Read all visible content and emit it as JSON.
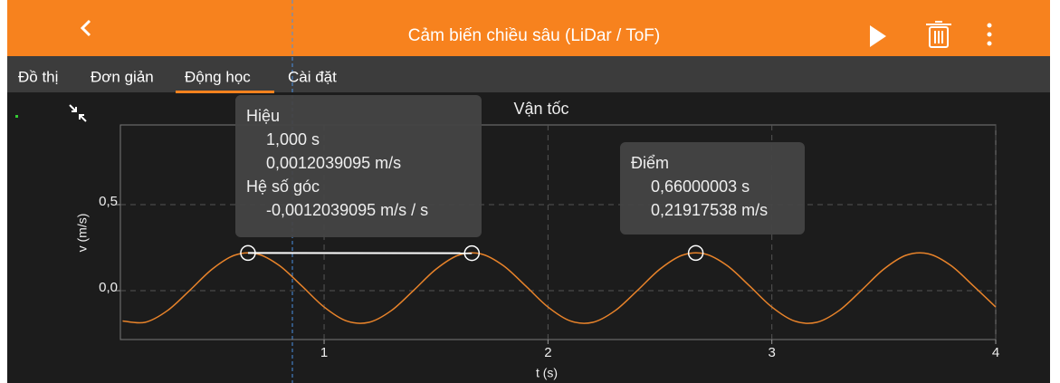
{
  "app_bar": {
    "title": "Cảm biến chiều sâu (LiDar / ToF)"
  },
  "tabs": [
    "Đồ thị",
    "Đơn giản",
    "Động học",
    "Cài đặt"
  ],
  "popups": [
    {
      "lines": [
        "Hiệu",
        "1,000 s",
        "0,0012039095 m/s",
        "Hệ số góc",
        "-0,0012039095 m/s / s"
      ]
    },
    {
      "lines": [
        "Điểm",
        "0,66000003 s",
        "0,21917538 m/s"
      ]
    }
  ],
  "chart_data": {
    "type": "line",
    "title": "Vận tốc",
    "x_label": "t (s)",
    "y_label": "v (m/s)",
    "xlim": [
      0.09,
      4.0
    ],
    "ylim": [
      -0.284,
      0.963
    ],
    "xticks": [
      1,
      2,
      3,
      4
    ],
    "yticks": [
      {
        "value": 0.5,
        "label": "0,5"
      },
      {
        "value": 0,
        "label": "0,0"
      }
    ],
    "grid": true,
    "series": [
      {
        "color": "#e8832a",
        "x": [
          0.1,
          0.2,
          0.3,
          0.4,
          0.5,
          0.6,
          0.7,
          0.8,
          0.9,
          1.0,
          1.1,
          1.2,
          1.3,
          1.4,
          1.5,
          1.6,
          1.7,
          1.8,
          1.9,
          2.0,
          2.1,
          2.2,
          2.3,
          2.4,
          2.5,
          2.6,
          2.7,
          2.8,
          2.9,
          3.0,
          3.1,
          3.2,
          3.3,
          3.4,
          3.5,
          3.6,
          3.7,
          3.8,
          3.9,
          4.0
        ],
        "values": [
          -0.176,
          -0.184,
          -0.116,
          0.002,
          0.125,
          0.206,
          0.214,
          0.146,
          0.028,
          -0.095,
          -0.176,
          -0.184,
          -0.116,
          0.002,
          0.125,
          0.206,
          0.214,
          0.146,
          0.028,
          -0.095,
          -0.176,
          -0.184,
          -0.116,
          0.002,
          0.125,
          0.206,
          0.214,
          0.146,
          0.028,
          -0.095,
          -0.176,
          -0.184,
          -0.116,
          0.002,
          0.125,
          0.206,
          0.214,
          0.146,
          0.028,
          -0.095
        ]
      }
    ],
    "markers": {
      "color": "#ffffff",
      "x": [
        0.66,
        1.66,
        2.66
      ],
      "values": [
        0.219,
        0.218,
        0.219
      ]
    }
  }
}
